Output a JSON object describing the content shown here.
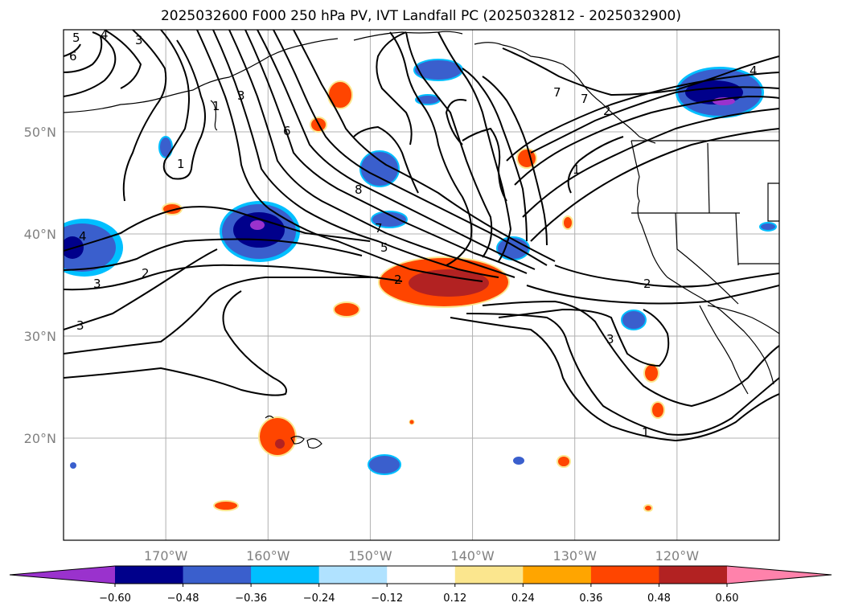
{
  "title": "2025032600 F000 250 hPa PV, IVT Landfall PC (2025032812 - 2025032900)",
  "map": {
    "lon_range": [
      -180,
      -110
    ],
    "lat_range": [
      10,
      60
    ],
    "lon_ticks": [
      {
        "value": -170,
        "label": "170°W"
      },
      {
        "value": -160,
        "label": "160°W"
      },
      {
        "value": -150,
        "label": "150°W"
      },
      {
        "value": -140,
        "label": "140°W"
      },
      {
        "value": -130,
        "label": "130°W"
      },
      {
        "value": -120,
        "label": "120°W"
      }
    ],
    "lat_ticks": [
      {
        "value": 50,
        "label": "50°N"
      },
      {
        "value": 40,
        "label": "40°N"
      },
      {
        "value": 30,
        "label": "30°N"
      },
      {
        "value": 20,
        "label": "20°N"
      }
    ],
    "grid": true,
    "contour_color": "#000000",
    "land_line_color": "#000000"
  },
  "colorbar": {
    "extend": "both",
    "colors": [
      "#9a32cd",
      "#00008b",
      "#3a5fcd",
      "#00bfff",
      "#b0e2ff",
      "#ffffff",
      "#fbe68e",
      "#ffa500",
      "#ff4500",
      "#b22222",
      "#ff82ab"
    ],
    "tick_labels": [
      "−0.60",
      "−0.48",
      "−0.36",
      "−0.24",
      "−0.12",
      "0.12",
      "0.24",
      "0.36",
      "0.48",
      "0.60"
    ]
  },
  "contour_labels": [
    "5",
    "4",
    "3",
    "6",
    "1",
    "3",
    "6",
    "1",
    "8",
    "7",
    "5",
    "4",
    "2",
    "3",
    "2",
    "3",
    "2",
    "7",
    "7",
    "1",
    "4",
    "2",
    "3",
    "1"
  ]
}
